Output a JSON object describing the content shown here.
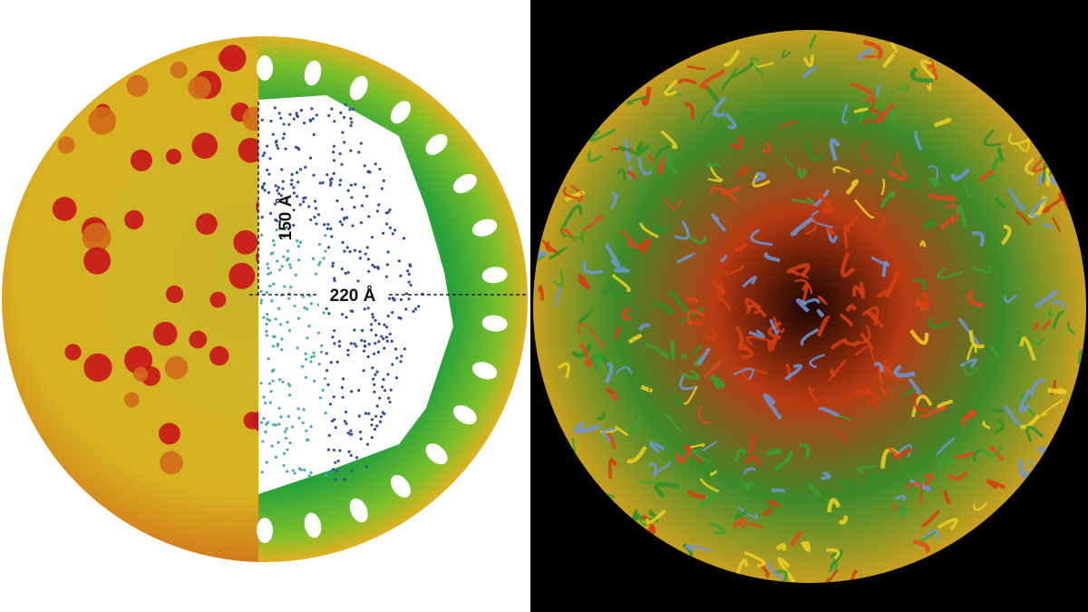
{
  "left_panel": {
    "radius_label": "150 Å",
    "diameter_label": "220 Å"
  }
}
